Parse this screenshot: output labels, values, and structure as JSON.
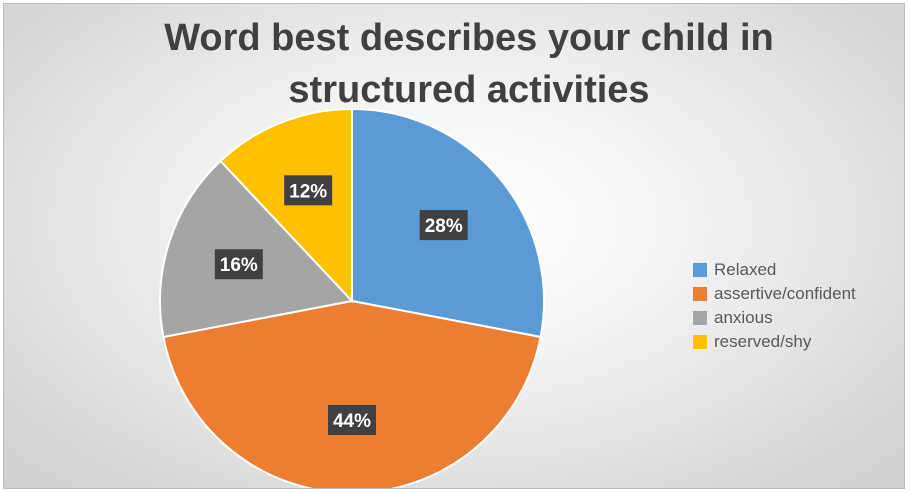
{
  "chart_data": {
    "type": "pie",
    "title_lines": [
      "Word best describes your child in",
      "structured activities"
    ],
    "slices": [
      {
        "label": "Relaxed",
        "value": 28,
        "display": "28%",
        "color": "#5B9BD5"
      },
      {
        "label": "assertive/confident",
        "value": 44,
        "display": "44%",
        "color": "#ED7D31"
      },
      {
        "label": "anxious",
        "value": 16,
        "display": "16%",
        "color": "#A5A5A5"
      },
      {
        "label": "reserved/shy",
        "value": 12,
        "display": "12%",
        "color": "#FFC000"
      }
    ],
    "legend_position": "right"
  }
}
